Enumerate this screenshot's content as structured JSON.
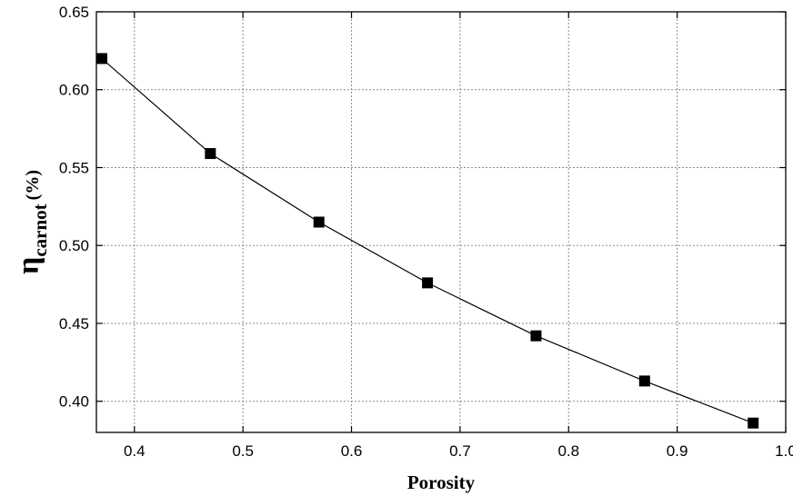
{
  "chart_data": {
    "type": "line",
    "xlabel": "Porosity",
    "ylabel": {
      "symbol": "η",
      "subscript": "carnot",
      "unit": "(%)"
    },
    "xlim": [
      0.365,
      1.0
    ],
    "ylim": [
      0.38,
      0.65
    ],
    "x_ticks": [
      0.4,
      0.5,
      0.6,
      0.7,
      0.8,
      0.9,
      1.0
    ],
    "x_tick_labels": [
      "0.4",
      "0.5",
      "0.6",
      "0.7",
      "0.8",
      "0.9",
      "1.0"
    ],
    "y_ticks": [
      0.4,
      0.45,
      0.5,
      0.55,
      0.6,
      0.65
    ],
    "y_tick_labels": [
      "0.40",
      "0.45",
      "0.50",
      "0.55",
      "0.60",
      "0.65"
    ],
    "grid": true,
    "series": [
      {
        "x": [
          0.37,
          0.47,
          0.57,
          0.67,
          0.77,
          0.87,
          0.97
        ],
        "y": [
          0.62,
          0.559,
          0.515,
          0.476,
          0.442,
          0.413,
          0.386
        ],
        "marker": "square",
        "color": "#000000"
      }
    ]
  }
}
